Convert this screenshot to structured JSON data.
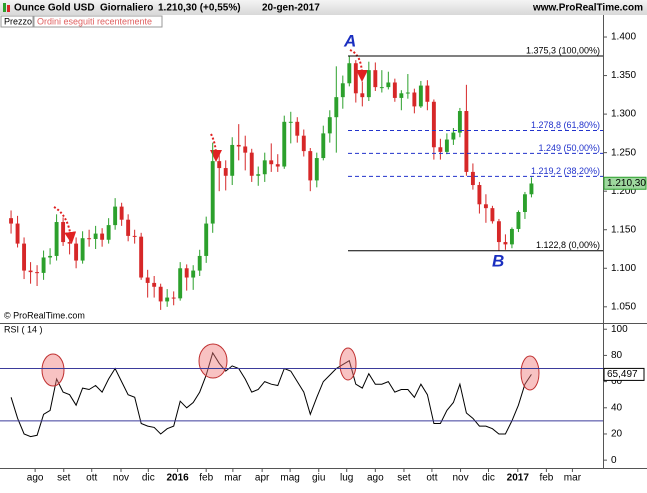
{
  "header": {
    "instrument": "Ounce Gold USD",
    "period": "Giornaliero",
    "quote": "1.210,30 (+0,55%)",
    "date": "20-gen-2017",
    "site": "www.ProRealTime.com"
  },
  "legend": {
    "price": "Prezzo",
    "orders": "Ordini eseguiti recentemente"
  },
  "copyright": "© ProRealTime.com",
  "chart_data": [
    {
      "type": "candlestick",
      "up_color": "#2ca02c",
      "down_color": "#d62728",
      "xlim": [
        -1.7,
        91
      ],
      "ylim": [
        1029,
        1413
      ],
      "yticks": [
        {
          "value": 1050,
          "label": "1.050"
        },
        {
          "value": 1100,
          "label": "1.100"
        },
        {
          "value": 1150,
          "label": "1.150"
        },
        {
          "value": 1200,
          "label": "1.200"
        },
        {
          "value": 1250,
          "label": "1.250"
        },
        {
          "value": 1300,
          "label": "1.300"
        },
        {
          "value": 1350,
          "label": "1.350"
        },
        {
          "value": 1400,
          "label": "1.400"
        }
      ],
      "open": [
        1165,
        1158,
        1132,
        1097,
        1095,
        1094,
        1114,
        1116,
        1160,
        1134,
        1132,
        1110,
        1139,
        1138,
        1145,
        1137,
        1156,
        1180,
        1163,
        1142,
        1141,
        1088,
        1081,
        1076,
        1057,
        1062,
        1061,
        1100,
        1088,
        1097,
        1116,
        1158,
        1239,
        1230,
        1220,
        1260,
        1258,
        1250,
        1220,
        1222,
        1240,
        1235,
        1232,
        1290,
        1290,
        1272,
        1252,
        1214,
        1243,
        1275,
        1296,
        1322,
        1340,
        1366,
        1327,
        1322,
        1357,
        1335,
        1335,
        1341,
        1321,
        1327,
        1328,
        1310,
        1337,
        1316,
        1257,
        1251,
        1267,
        1276,
        1304,
        1225,
        1208,
        1183,
        1178,
        1161,
        1134,
        1131,
        1151,
        1173,
        1196
      ],
      "high": [
        1175,
        1168,
        1140,
        1108,
        1104,
        1123,
        1126,
        1170,
        1166,
        1142,
        1140,
        1148,
        1150,
        1155,
        1152,
        1165,
        1191,
        1185,
        1170,
        1150,
        1146,
        1098,
        1090,
        1080,
        1073,
        1070,
        1108,
        1105,
        1104,
        1124,
        1167,
        1263,
        1248,
        1240,
        1270,
        1287,
        1272,
        1255,
        1232,
        1250,
        1262,
        1248,
        1298,
        1303,
        1296,
        1280,
        1256,
        1250,
        1285,
        1305,
        1362,
        1350,
        1375,
        1370,
        1342,
        1368,
        1367,
        1357,
        1355,
        1346,
        1331,
        1352,
        1333,
        1343,
        1344,
        1319,
        1268,
        1275,
        1282,
        1308,
        1338,
        1236,
        1212,
        1196,
        1181,
        1164,
        1144,
        1153,
        1175,
        1199,
        1218
      ],
      "low": [
        1145,
        1127,
        1086,
        1080,
        1077,
        1085,
        1105,
        1110,
        1129,
        1118,
        1100,
        1106,
        1128,
        1125,
        1128,
        1132,
        1150,
        1155,
        1135,
        1132,
        1085,
        1062,
        1062,
        1046,
        1050,
        1052,
        1058,
        1071,
        1072,
        1090,
        1107,
        1146,
        1200,
        1201,
        1208,
        1240,
        1227,
        1212,
        1207,
        1212,
        1225,
        1225,
        1229,
        1262,
        1263,
        1245,
        1200,
        1205,
        1240,
        1263,
        1250,
        1307,
        1336,
        1315,
        1310,
        1317,
        1330,
        1328,
        1332,
        1316,
        1305,
        1320,
        1301,
        1308,
        1305,
        1241,
        1241,
        1248,
        1260,
        1270,
        1220,
        1202,
        1171,
        1159,
        1158,
        1123,
        1124,
        1126,
        1147,
        1164,
        1192
      ],
      "close": [
        1158,
        1132,
        1097,
        1095,
        1094,
        1114,
        1116,
        1160,
        1134,
        1132,
        1110,
        1139,
        1138,
        1145,
        1137,
        1156,
        1180,
        1163,
        1142,
        1141,
        1088,
        1081,
        1076,
        1057,
        1062,
        1061,
        1100,
        1088,
        1097,
        1116,
        1158,
        1239,
        1230,
        1220,
        1260,
        1258,
        1250,
        1220,
        1222,
        1240,
        1235,
        1232,
        1290,
        1290,
        1272,
        1252,
        1214,
        1243,
        1275,
        1296,
        1322,
        1340,
        1366,
        1327,
        1322,
        1357,
        1335,
        1335,
        1341,
        1321,
        1327,
        1328,
        1310,
        1337,
        1316,
        1257,
        1251,
        1267,
        1276,
        1304,
        1225,
        1208,
        1183,
        1178,
        1161,
        1134,
        1131,
        1151,
        1173,
        1196,
        1210
      ],
      "last": {
        "value": 1210.3,
        "label": "1.210,30"
      },
      "fib_levels": [
        {
          "value": 1375.3,
          "label": "1.375,3 (100,00%)"
        },
        {
          "value": 1278.8,
          "label": "1.278,8 (61,80%)"
        },
        {
          "value": 1249,
          "label": "1.249 (50,00%)"
        },
        {
          "value": 1219.2,
          "label": "1.219,2 (38,20%)"
        },
        {
          "value": 1122.8,
          "label": "1.122,8 (0,00%)"
        }
      ],
      "annotations": [
        "A",
        "B"
      ]
    },
    {
      "type": "line",
      "title": "RSI ( 14 )",
      "color": "#000000",
      "xlim": [
        -1.7,
        91
      ],
      "ylim": [
        -6,
        104
      ],
      "yticks": [
        0,
        20,
        40,
        60,
        80,
        100
      ],
      "levels": [
        70,
        30
      ],
      "level_color": "#3b3b9b",
      "values": [
        48,
        32,
        20,
        18,
        19,
        35,
        38,
        62,
        52,
        50,
        42,
        55,
        54,
        57,
        52,
        62,
        70,
        60,
        50,
        48,
        28,
        26,
        25,
        20,
        24,
        26,
        45,
        40,
        44,
        52,
        65,
        82,
        74,
        68,
        72,
        70,
        62,
        52,
        54,
        60,
        58,
        57,
        70,
        68,
        60,
        52,
        35,
        48,
        60,
        65,
        70,
        73,
        76,
        58,
        55,
        66,
        58,
        58,
        60,
        52,
        54,
        54,
        48,
        58,
        50,
        28,
        28,
        38,
        44,
        58,
        36,
        32,
        26,
        26,
        24,
        20,
        20,
        30,
        42,
        58,
        65.497
      ],
      "last": {
        "value": 65.497,
        "label": "65,497"
      },
      "xticks": [
        {
          "value": 3.7,
          "label": "ago"
        },
        {
          "value": 8.1,
          "label": "set"
        },
        {
          "value": 12.4,
          "label": "ott"
        },
        {
          "value": 16.9,
          "label": "nov"
        },
        {
          "value": 21.1,
          "label": "dic"
        },
        {
          "value": 25.6,
          "label": "2016"
        },
        {
          "value": 30,
          "label": "feb"
        },
        {
          "value": 34.1,
          "label": "mar"
        },
        {
          "value": 38.6,
          "label": "apr"
        },
        {
          "value": 42.9,
          "label": "mag"
        },
        {
          "value": 47.3,
          "label": "giu"
        },
        {
          "value": 51.6,
          "label": "lug"
        },
        {
          "value": 56,
          "label": "ago"
        },
        {
          "value": 60.4,
          "label": "set"
        },
        {
          "value": 64.7,
          "label": "ott"
        },
        {
          "value": 69.1,
          "label": "nov"
        },
        {
          "value": 73.4,
          "label": "dic"
        },
        {
          "value": 77.9,
          "label": "2017"
        },
        {
          "value": 82.3,
          "label": "feb"
        },
        {
          "value": 86.3,
          "label": "mar"
        }
      ]
    }
  ]
}
